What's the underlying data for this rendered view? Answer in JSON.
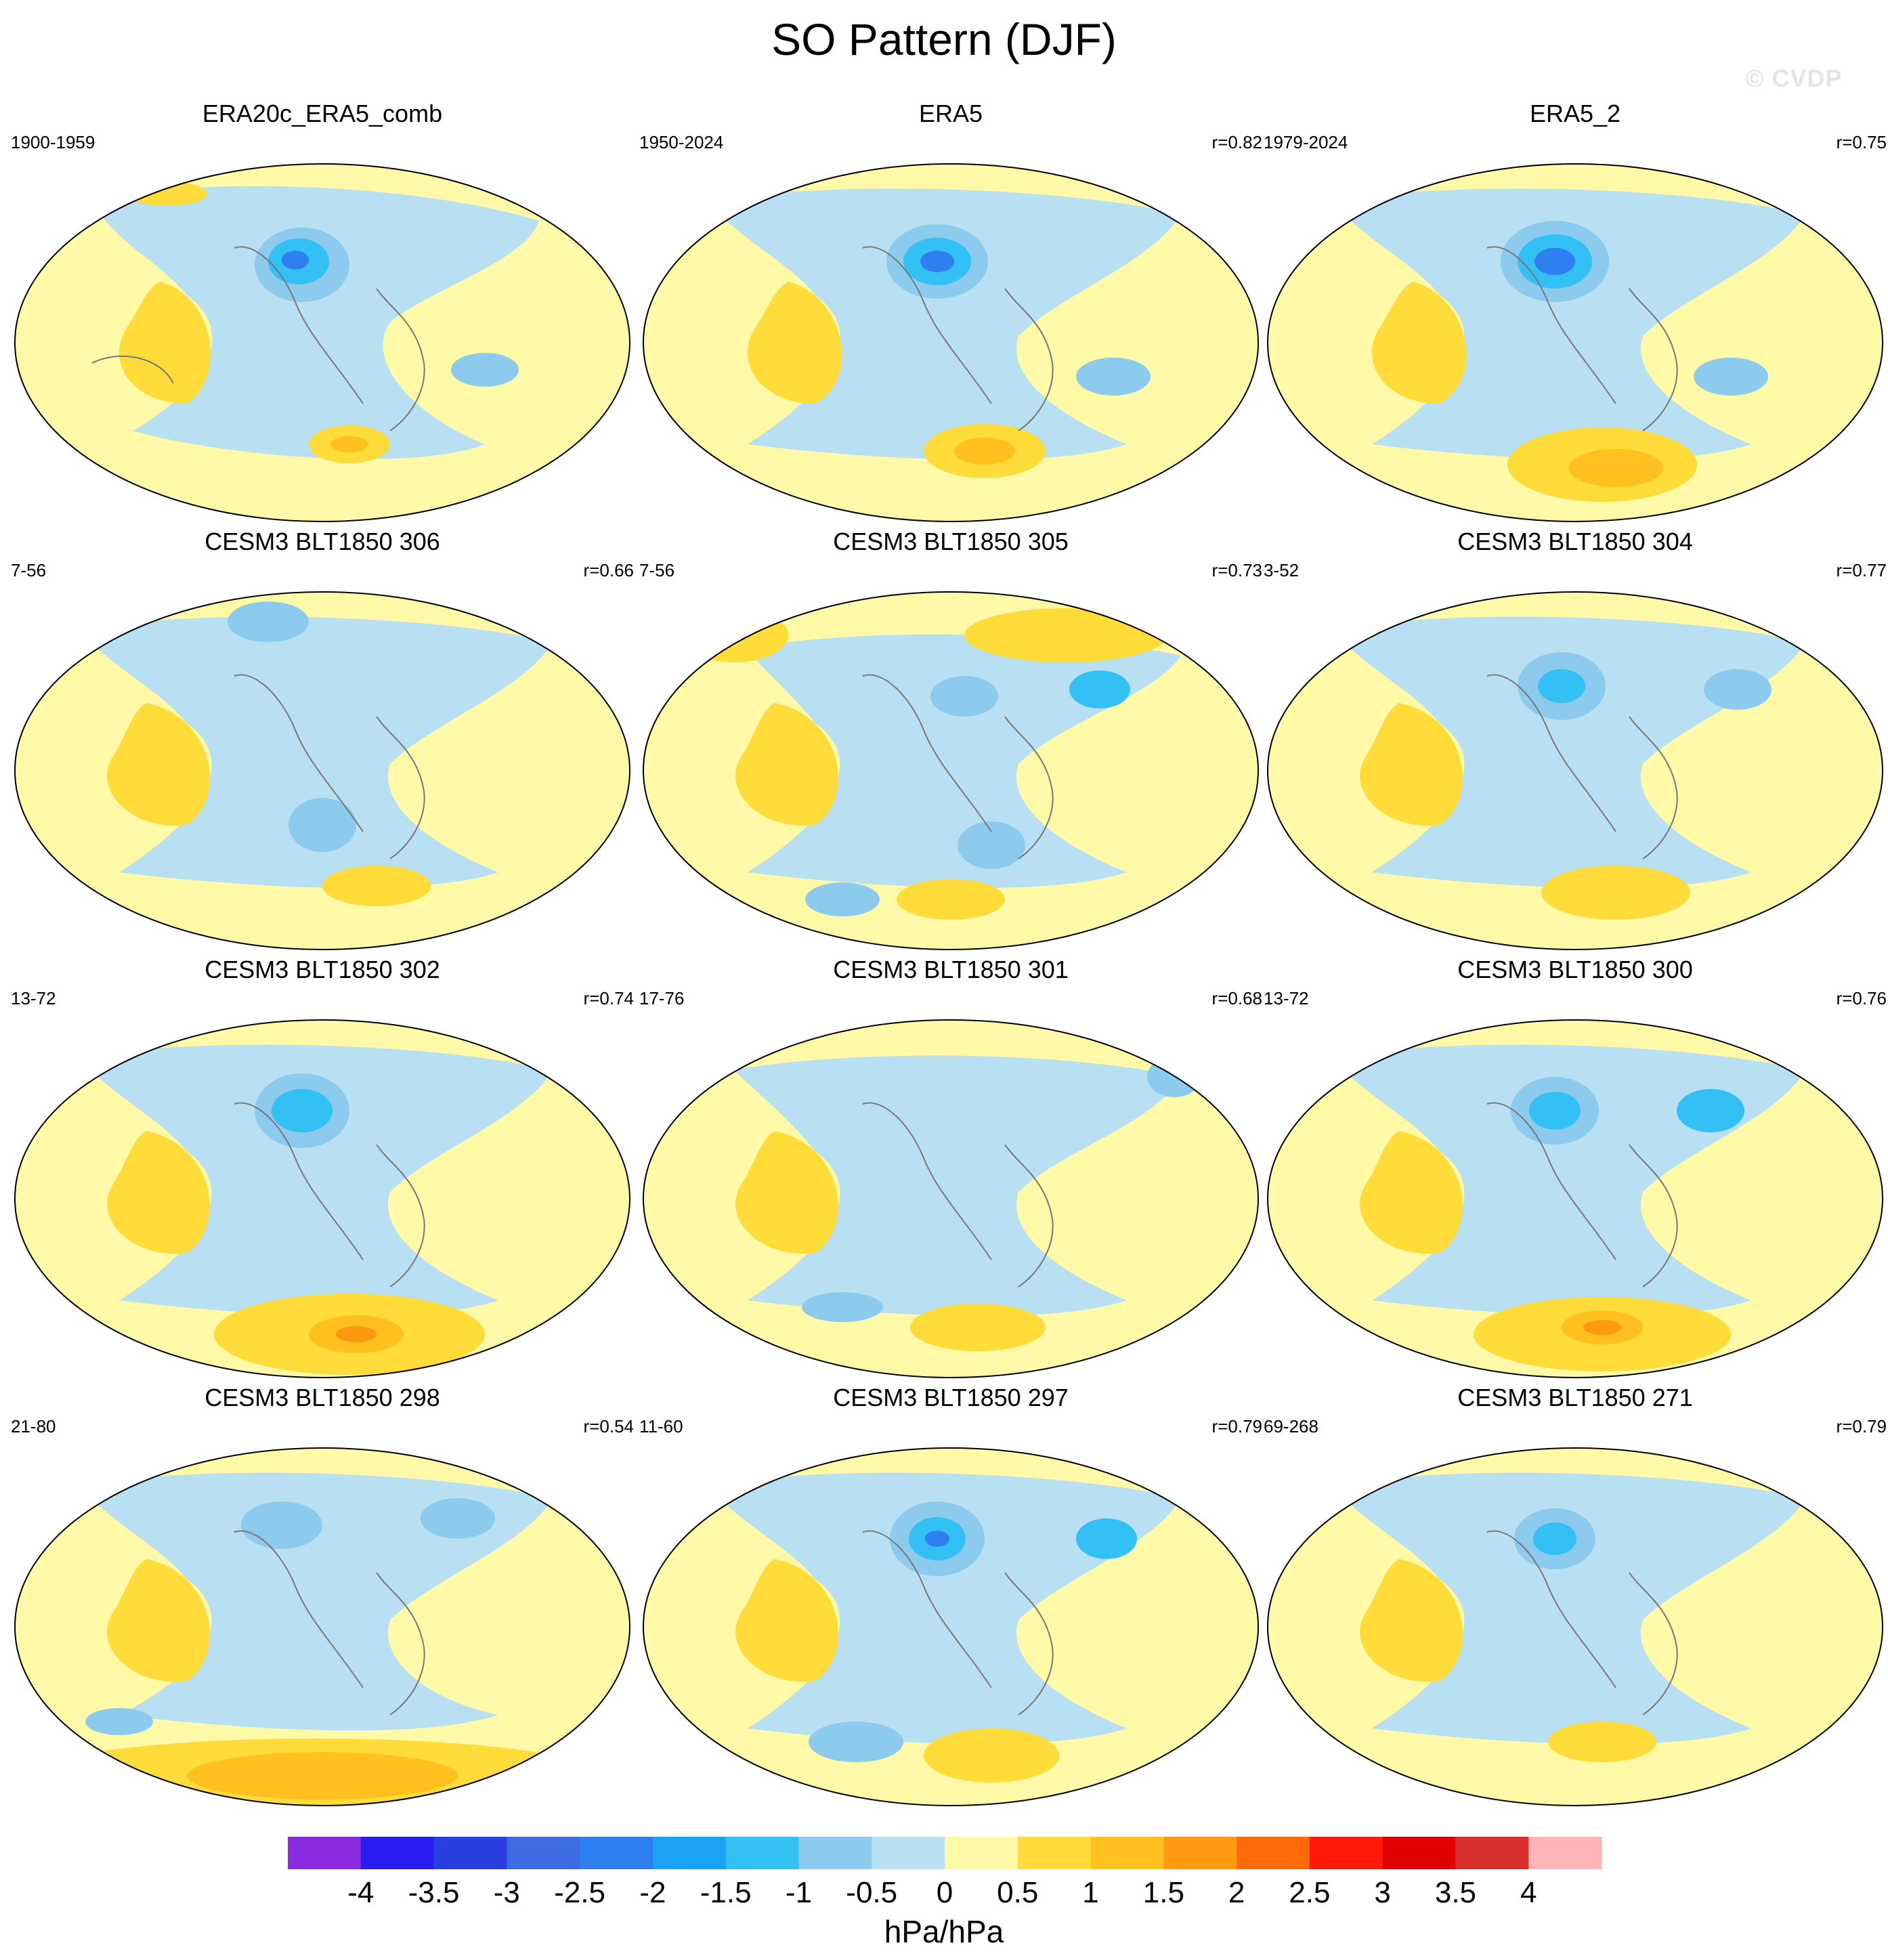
{
  "title": "SO Pattern (DJF)",
  "watermark": "© CVDP",
  "units": "hPa/hPa",
  "colorbar": {
    "tick_labels": [
      "-4",
      "-3.5",
      "-3",
      "-2.5",
      "-2",
      "-1.5",
      "-1",
      "-0.5",
      "0",
      "0.5",
      "1",
      "1.5",
      "2",
      "2.5",
      "3",
      "3.5",
      "4"
    ],
    "colors": [
      "#8a2be2",
      "#2a1df2",
      "#2a3fe0",
      "#3d6be0",
      "#2f7ff0",
      "#1aa3f5",
      "#33c0f5",
      "#8ccbee",
      "#b8e0f2",
      "#fff9a8",
      "#ffdc3a",
      "#ffc020",
      "#ff9a10",
      "#ff6a08",
      "#ff1a0a",
      "#e00000",
      "#d83030",
      "#ffb4b8"
    ]
  },
  "panels": [
    {
      "title": "ERA20c_ERA5_comb",
      "period": "1900-1959",
      "corr": ""
    },
    {
      "title": "ERA5",
      "period": "1950-2024",
      "corr": "r=0.82"
    },
    {
      "title": "ERA5_2",
      "period": "1979-2024",
      "corr": "r=0.75"
    },
    {
      "title": "CESM3 BLT1850 306",
      "period": "7-56",
      "corr": "r=0.66"
    },
    {
      "title": "CESM3 BLT1850 305",
      "period": "7-56",
      "corr": "r=0.73"
    },
    {
      "title": "CESM3 BLT1850 304",
      "period": "3-52",
      "corr": "r=0.77"
    },
    {
      "title": "CESM3 BLT1850 302",
      "period": "13-72",
      "corr": "r=0.74"
    },
    {
      "title": "CESM3 BLT1850 301",
      "period": "17-76",
      "corr": "r=0.68"
    },
    {
      "title": "CESM3 BLT1850 300",
      "period": "13-72",
      "corr": "r=0.76"
    },
    {
      "title": "CESM3 BLT1850 298",
      "period": "21-80",
      "corr": "r=0.54"
    },
    {
      "title": "CESM3 BLT1850 297",
      "period": "11-60",
      "corr": "r=0.79"
    },
    {
      "title": "CESM3 BLT1850 271",
      "period": "69-268",
      "corr": "r=0.79"
    }
  ]
}
